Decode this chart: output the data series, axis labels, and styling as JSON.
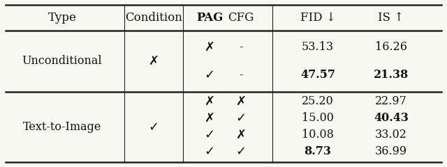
{
  "headers": [
    "Type",
    "Condition",
    "PAG",
    "CFG",
    "FID ↓",
    "IS ↑"
  ],
  "header_bold": [
    false,
    false,
    true,
    false,
    false,
    false
  ],
  "rows": [
    {
      "type": "Unconditional",
      "condition": "✗",
      "entries": [
        {
          "pag": "✗",
          "cfg": "-",
          "fid": "53.13",
          "is_val": "16.26",
          "fid_bold": false,
          "is_bold": false
        },
        {
          "pag": "✓",
          "cfg": "-",
          "fid": "47.57",
          "is_val": "21.38",
          "fid_bold": true,
          "is_bold": true
        }
      ]
    },
    {
      "type": "Text-to-Image",
      "condition": "✓",
      "entries": [
        {
          "pag": "✗",
          "cfg": "✗",
          "fid": "25.20",
          "is_val": "22.97",
          "fid_bold": false,
          "is_bold": false
        },
        {
          "pag": "✗",
          "cfg": "✓",
          "fid": "15.00",
          "is_val": "40.43",
          "fid_bold": false,
          "is_bold": true
        },
        {
          "pag": "✓",
          "cfg": "✗",
          "fid": "10.08",
          "is_val": "33.02",
          "fid_bold": false,
          "is_bold": false
        },
        {
          "pag": "✓",
          "cfg": "✓",
          "fid": "8.73",
          "is_val": "36.99",
          "fid_bold": true,
          "is_bold": false
        }
      ]
    }
  ],
  "bg_color": "#f8f8f2",
  "text_color": "#111111",
  "line_color": "#222222"
}
